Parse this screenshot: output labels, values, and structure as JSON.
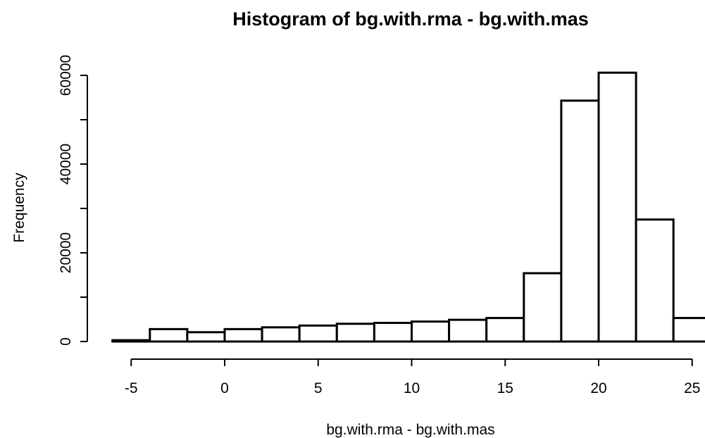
{
  "chart_data": {
    "type": "bar",
    "title": "Histogram of bg.with.rma - bg.with.mas",
    "xlabel": "bg.with.rma - bg.with.mas",
    "ylabel": "Frequency",
    "xlim": [
      -6,
      26
    ],
    "ylim": [
      0,
      62000
    ],
    "x_ticks": [
      -5,
      0,
      5,
      10,
      15,
      20,
      25
    ],
    "y_ticks": [
      0,
      20000,
      40000,
      60000
    ],
    "bins": [
      {
        "start": -6,
        "end": -4,
        "count": 300
      },
      {
        "start": -4,
        "end": -2,
        "count": 2800
      },
      {
        "start": -2,
        "end": 0,
        "count": 2100
      },
      {
        "start": 0,
        "end": 2,
        "count": 2800
      },
      {
        "start": 2,
        "end": 4,
        "count": 3200
      },
      {
        "start": 4,
        "end": 6,
        "count": 3600
      },
      {
        "start": 6,
        "end": 8,
        "count": 4000
      },
      {
        "start": 8,
        "end": 10,
        "count": 4200
      },
      {
        "start": 10,
        "end": 12,
        "count": 4500
      },
      {
        "start": 12,
        "end": 14,
        "count": 4900
      },
      {
        "start": 14,
        "end": 16,
        "count": 5300
      },
      {
        "start": 16,
        "end": 18,
        "count": 15400
      },
      {
        "start": 18,
        "end": 20,
        "count": 54300
      },
      {
        "start": 20,
        "end": 22,
        "count": 60600
      },
      {
        "start": 22,
        "end": 24,
        "count": 27500
      },
      {
        "start": 24,
        "end": 26,
        "count": 5300
      }
    ],
    "grid": false,
    "bar_fill": "#ffffff",
    "bar_stroke": "#000000"
  }
}
